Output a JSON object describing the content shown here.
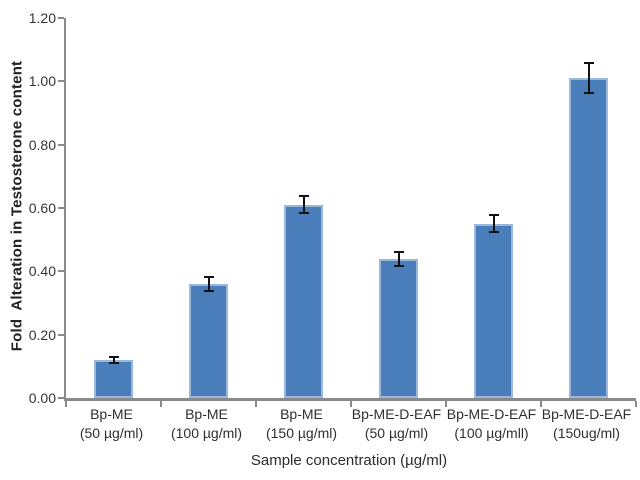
{
  "chart_data": {
    "type": "bar",
    "title": "",
    "categories": [
      "Bp-ME\n(50 µg/ml)",
      "Bp-ME\n(100 µg/ml)",
      "Bp-ME\n(150 µg/ml)",
      "Bp-ME-D-EAF\n(50 µg/ml)",
      "Bp-ME-D-EAF\n(100 µg/mll)",
      "Bp-ME-D-EAF\n(150ug/ml)"
    ],
    "values": [
      0.12,
      0.36,
      0.61,
      0.44,
      0.55,
      1.01
    ],
    "errors": [
      0.012,
      0.025,
      0.03,
      0.025,
      0.03,
      0.05
    ],
    "xlabel": "Sample concentration (µg/ml)",
    "ylabel": "Fold  Alteration in Testosterone content",
    "ylim": [
      0,
      1.2
    ],
    "yticks": [
      0,
      0.2,
      0.4,
      0.6,
      0.8,
      1.0,
      1.2
    ],
    "ytick_labels": [
      "0.00",
      "0.20",
      "0.40",
      "0.60",
      "0.80",
      "1.00",
      "1.20"
    ],
    "grid": false,
    "legend": false,
    "colors": {
      "bar_fill": "#4a7ebb",
      "bar_border": "#9bb7dc",
      "error_bar": "#111111",
      "axis": "#8a8a8a"
    }
  }
}
